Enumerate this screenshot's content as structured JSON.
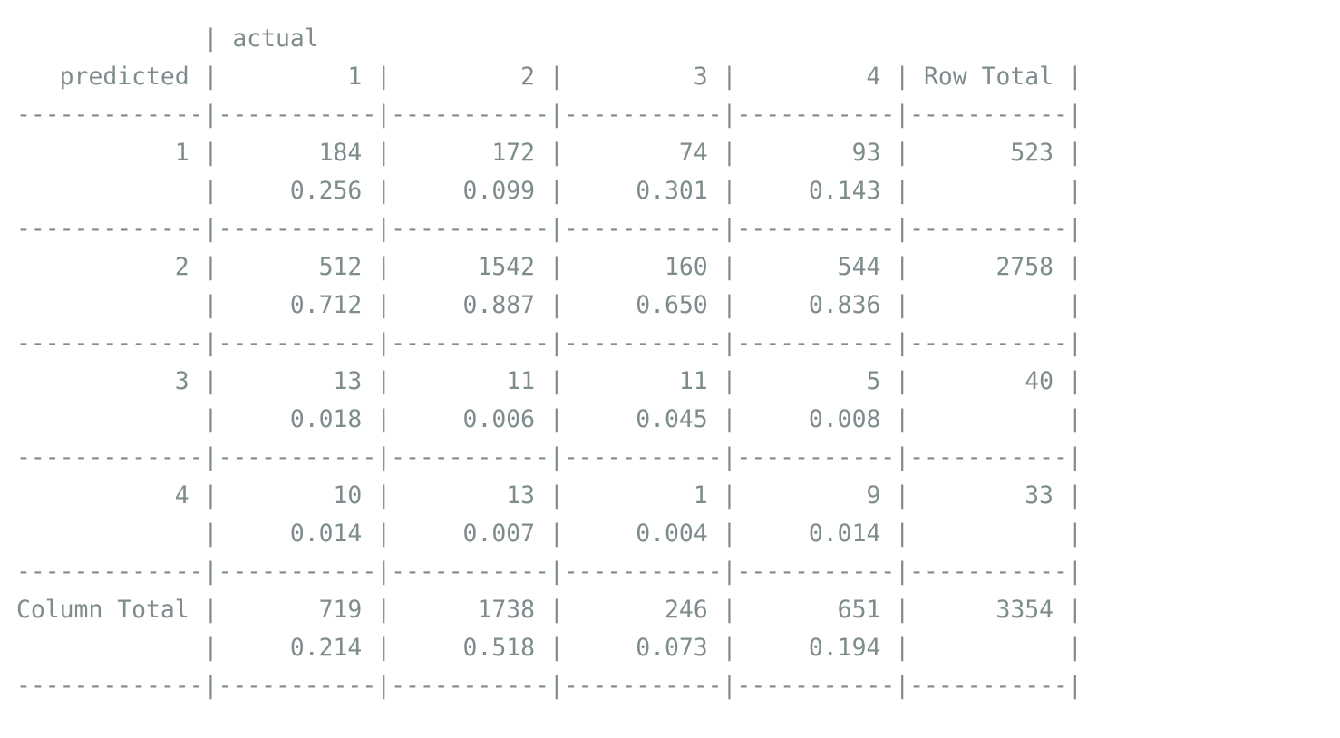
{
  "row_var": "predicted",
  "col_var": "actual",
  "col_headers": [
    "1",
    "2",
    "3",
    "4"
  ],
  "row_total_label": "Row Total",
  "column_total_label": "Column Total",
  "rows": [
    {
      "label": "1",
      "counts": [
        "184",
        "172",
        "74",
        "93"
      ],
      "props": [
        "0.256",
        "0.099",
        "0.301",
        "0.143"
      ],
      "total": "523"
    },
    {
      "label": "2",
      "counts": [
        "512",
        "1542",
        "160",
        "544"
      ],
      "props": [
        "0.712",
        "0.887",
        "0.650",
        "0.836"
      ],
      "total": "2758"
    },
    {
      "label": "3",
      "counts": [
        "13",
        "11",
        "11",
        "5"
      ],
      "props": [
        "0.018",
        "0.006",
        "0.045",
        "0.008"
      ],
      "total": "40"
    },
    {
      "label": "4",
      "counts": [
        "10",
        "13",
        "1",
        "9"
      ],
      "props": [
        "0.014",
        "0.007",
        "0.004",
        "0.014"
      ],
      "total": "33"
    }
  ],
  "column_totals": {
    "counts": [
      "719",
      "1738",
      "246",
      "651"
    ],
    "props": [
      "0.214",
      "0.518",
      "0.073",
      "0.194"
    ],
    "total": "3354"
  }
}
